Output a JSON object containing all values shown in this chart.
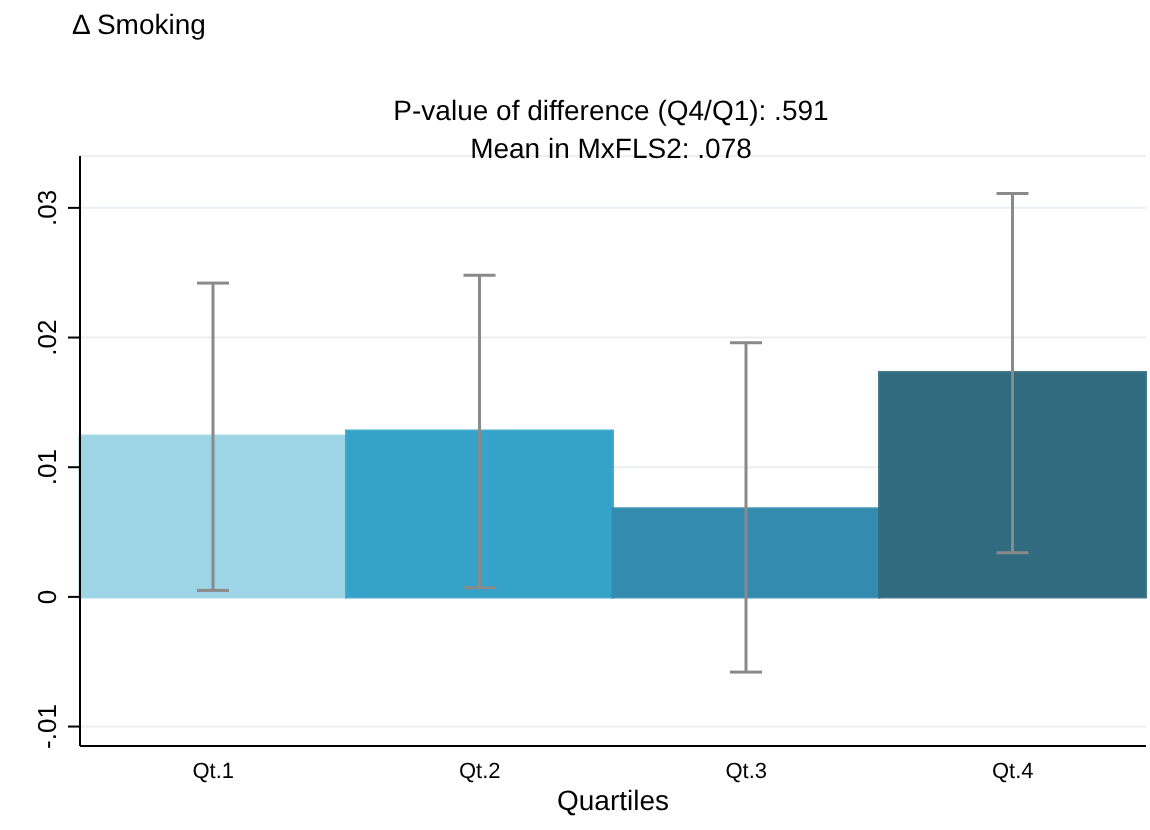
{
  "chart_data": {
    "type": "bar",
    "ylabel": "Δ Smoking",
    "xlabel": "Quartiles",
    "annotations": [
      "P-value of difference (Q4/Q1): .591",
      "Mean in MxFLS2: .078"
    ],
    "categories": [
      "Qt.1",
      "Qt.2",
      "Qt.3",
      "Qt.4"
    ],
    "values": [
      0.0124,
      0.0128,
      0.0068,
      0.0173
    ],
    "colors": [
      "#9dd4e6",
      "#35a2ca",
      "#338caf",
      "#316b7f"
    ],
    "errors": [
      [
        0.0005,
        0.0242
      ],
      [
        0.0007,
        0.0248
      ],
      [
        -0.0058,
        0.0196
      ],
      [
        0.0034,
        0.0311
      ]
    ],
    "ylim": [
      -0.0115,
      0.034
    ],
    "yticks": [
      {
        "value": -0.01,
        "label": "-.01"
      },
      0,
      {
        "value": 0.01,
        "label": ".01"
      },
      {
        "value": 0.02,
        "label": ".02"
      },
      {
        "value": 0.03,
        "label": ".03"
      }
    ],
    "grid": "y",
    "legend": false
  }
}
